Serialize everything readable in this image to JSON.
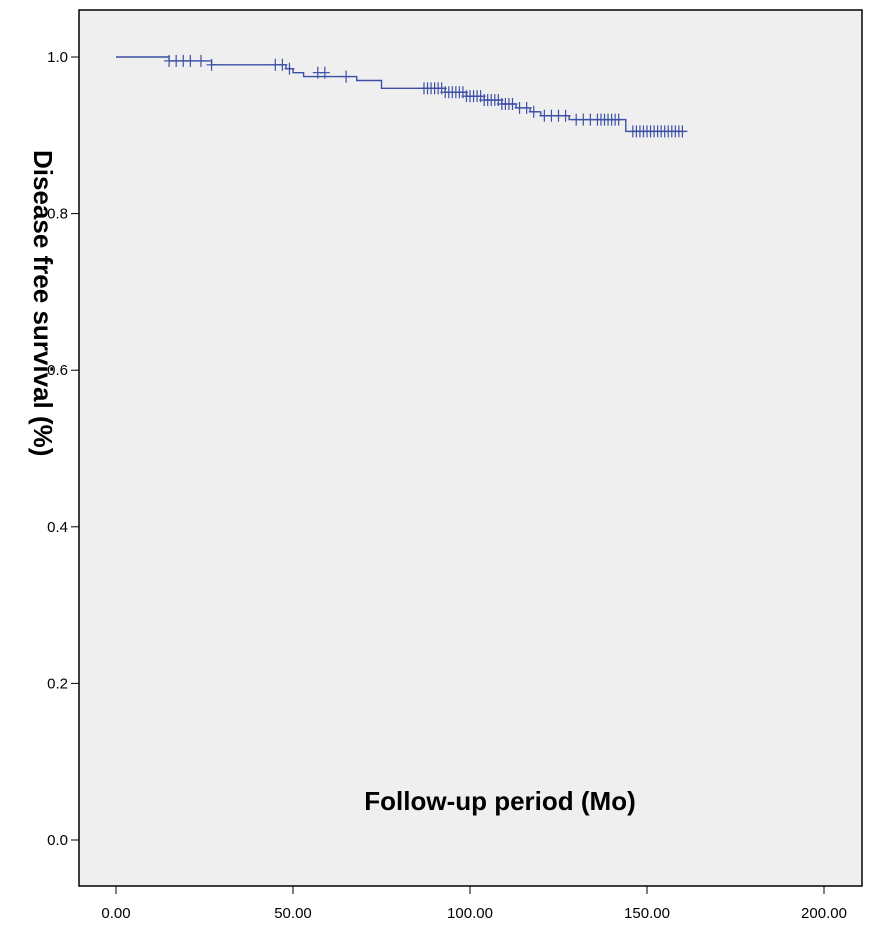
{
  "chart_data": {
    "type": "line",
    "title": "",
    "xlabel": "Follow-up period (Mo)",
    "ylabel": "Disease free survival (%)",
    "xlim": [
      0,
      200
    ],
    "ylim": [
      0,
      1.0
    ],
    "x_ticks": [
      "0.00",
      "50.00",
      "100.00",
      "150.00",
      "200.00"
    ],
    "y_ticks": [
      "0.0",
      "0.2",
      "0.4",
      "0.6",
      "0.8",
      "1.0"
    ],
    "grid": false,
    "colors": {
      "line": "#3b4fa6",
      "plot_background": "#efefef",
      "frame": "#000000"
    },
    "series": [
      {
        "step_curve": [
          [
            0,
            1.0
          ],
          [
            15,
            1.0
          ],
          [
            15,
            0.995
          ],
          [
            27,
            0.995
          ],
          [
            27,
            0.99
          ],
          [
            48,
            0.99
          ],
          [
            48,
            0.985
          ],
          [
            50,
            0.985
          ],
          [
            50,
            0.98
          ],
          [
            53,
            0.98
          ],
          [
            53,
            0.975
          ],
          [
            68,
            0.975
          ],
          [
            68,
            0.97
          ],
          [
            75,
            0.97
          ],
          [
            75,
            0.96
          ],
          [
            93,
            0.96
          ],
          [
            93,
            0.955
          ],
          [
            99,
            0.955
          ],
          [
            99,
            0.95
          ],
          [
            104,
            0.95
          ],
          [
            104,
            0.945
          ],
          [
            109,
            0.945
          ],
          [
            109,
            0.94
          ],
          [
            113,
            0.94
          ],
          [
            113,
            0.935
          ],
          [
            117,
            0.935
          ],
          [
            117,
            0.93
          ],
          [
            120,
            0.93
          ],
          [
            120,
            0.925
          ],
          [
            128,
            0.925
          ],
          [
            128,
            0.92
          ],
          [
            144,
            0.92
          ],
          [
            144,
            0.905
          ],
          [
            161,
            0.905
          ]
        ],
        "censored": [
          [
            15,
            0.995
          ],
          [
            17,
            0.995
          ],
          [
            19,
            0.995
          ],
          [
            21,
            0.995
          ],
          [
            24,
            0.995
          ],
          [
            27,
            0.99
          ],
          [
            45,
            0.99
          ],
          [
            47,
            0.99
          ],
          [
            49,
            0.985
          ],
          [
            57,
            0.98
          ],
          [
            59,
            0.98
          ],
          [
            65,
            0.975
          ],
          [
            87,
            0.96
          ],
          [
            88,
            0.96
          ],
          [
            89,
            0.96
          ],
          [
            90,
            0.96
          ],
          [
            91,
            0.96
          ],
          [
            92,
            0.96
          ],
          [
            93,
            0.955
          ],
          [
            94,
            0.955
          ],
          [
            95,
            0.955
          ],
          [
            96,
            0.955
          ],
          [
            97,
            0.955
          ],
          [
            98,
            0.955
          ],
          [
            99,
            0.95
          ],
          [
            100,
            0.95
          ],
          [
            101,
            0.95
          ],
          [
            102,
            0.95
          ],
          [
            103,
            0.95
          ],
          [
            104,
            0.945
          ],
          [
            105,
            0.945
          ],
          [
            106,
            0.945
          ],
          [
            107,
            0.945
          ],
          [
            108,
            0.945
          ],
          [
            109,
            0.94
          ],
          [
            110,
            0.94
          ],
          [
            111,
            0.94
          ],
          [
            112,
            0.94
          ],
          [
            114,
            0.935
          ],
          [
            116,
            0.935
          ],
          [
            118,
            0.93
          ],
          [
            121,
            0.925
          ],
          [
            123,
            0.925
          ],
          [
            125,
            0.925
          ],
          [
            127,
            0.925
          ],
          [
            130,
            0.92
          ],
          [
            132,
            0.92
          ],
          [
            134,
            0.92
          ],
          [
            136,
            0.92
          ],
          [
            137,
            0.92
          ],
          [
            138,
            0.92
          ],
          [
            139,
            0.92
          ],
          [
            140,
            0.92
          ],
          [
            141,
            0.92
          ],
          [
            142,
            0.92
          ],
          [
            146,
            0.905
          ],
          [
            147,
            0.905
          ],
          [
            148,
            0.905
          ],
          [
            149,
            0.905
          ],
          [
            150,
            0.905
          ],
          [
            151,
            0.905
          ],
          [
            152,
            0.905
          ],
          [
            153,
            0.905
          ],
          [
            154,
            0.905
          ],
          [
            155,
            0.905
          ],
          [
            156,
            0.905
          ],
          [
            157,
            0.905
          ],
          [
            158,
            0.905
          ],
          [
            159,
            0.905
          ],
          [
            160,
            0.905
          ]
        ]
      }
    ]
  }
}
